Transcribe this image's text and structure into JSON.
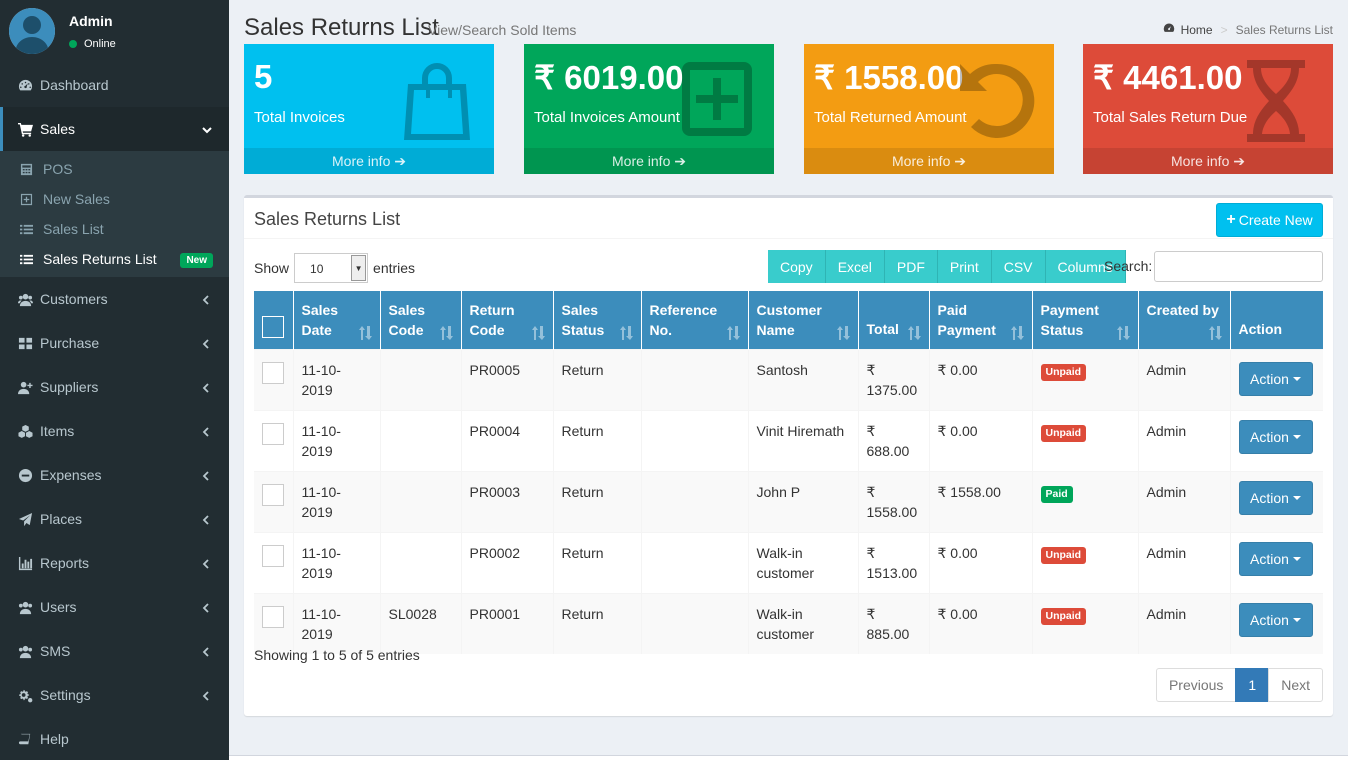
{
  "user": {
    "name": "Admin",
    "status": "Online"
  },
  "menu": [
    {
      "label": "Dashboard",
      "icon": "dashboard-icon"
    },
    {
      "label": "Sales",
      "icon": "cart-icon"
    },
    {
      "label": "Customers",
      "icon": "users-icon"
    },
    {
      "label": "Purchase",
      "icon": "grid-icon"
    },
    {
      "label": "Suppliers",
      "icon": "user-plus-icon"
    },
    {
      "label": "Items",
      "icon": "cubes-icon"
    },
    {
      "label": "Expenses",
      "icon": "minus-circle-icon"
    },
    {
      "label": "Places",
      "icon": "paper-plane-icon"
    },
    {
      "label": "Reports",
      "icon": "bar-chart-icon"
    },
    {
      "label": "Users",
      "icon": "users-icon"
    },
    {
      "label": "SMS",
      "icon": "users-icon"
    },
    {
      "label": "Settings",
      "icon": "cogs-icon"
    },
    {
      "label": "Help",
      "icon": "book-icon"
    }
  ],
  "sales_submenu": [
    {
      "label": "POS",
      "icon": "calculator-icon"
    },
    {
      "label": "New Sales",
      "icon": "plus-square-icon"
    },
    {
      "label": "Sales List",
      "icon": "list-icon"
    },
    {
      "label": "Sales Returns List",
      "icon": "list-icon",
      "badge": "New"
    }
  ],
  "page": {
    "title": "Sales Returns List",
    "subtitle": "View/Search Sold Items"
  },
  "breadcrumb": {
    "home": "Home",
    "current": "Sales Returns List"
  },
  "boxes": [
    {
      "value": "5",
      "label": "Total Invoices",
      "footer": "More info",
      "color": "#00c0ef",
      "icon": "shopping-bag-icon"
    },
    {
      "value": "₹ 6019.00",
      "label": "Total Invoices Amount",
      "footer": "More info",
      "color": "#00a65a",
      "icon": "plus-square-icon"
    },
    {
      "value": "₹ 1558.00",
      "label": "Total Returned Amount",
      "footer": "More info",
      "color": "#f39c12",
      "icon": "undo-icon"
    },
    {
      "value": "₹ 4461.00",
      "label": "Total Sales Return Due",
      "footer": "More info",
      "color": "#dd4b39",
      "icon": "hourglass-icon"
    }
  ],
  "list": {
    "title": "Sales Returns List",
    "create_label": "Create New",
    "show_label": "Show",
    "entries_label": "entries",
    "page_length": "10",
    "search_label": "Search:",
    "buttons": [
      "Copy",
      "Excel",
      "PDF",
      "Print",
      "CSV",
      "Columns"
    ],
    "columns": [
      "Sales Date",
      "Sales Code",
      "Return Code",
      "Sales Status",
      "Reference No.",
      "Customer Name",
      "Total",
      "Paid Payment",
      "Payment Status",
      "Created by",
      "Action"
    ],
    "rows": [
      {
        "date": "11-10-2019",
        "sales_code": "",
        "return_code": "PR0005",
        "status": "Return",
        "ref": "",
        "customer": "Santosh",
        "total": "₹ 1375.00",
        "paid": "₹ 0.00",
        "payment_status": "Unpaid",
        "created_by": "Admin",
        "action": "Action"
      },
      {
        "date": "11-10-2019",
        "sales_code": "",
        "return_code": "PR0004",
        "status": "Return",
        "ref": "",
        "customer": "Vinit Hiremath",
        "total": "₹ 688.00",
        "paid": "₹ 0.00",
        "payment_status": "Unpaid",
        "created_by": "Admin",
        "action": "Action"
      },
      {
        "date": "11-10-2019",
        "sales_code": "",
        "return_code": "PR0003",
        "status": "Return",
        "ref": "",
        "customer": "John P",
        "total": "₹ 1558.00",
        "paid": "₹ 1558.00",
        "payment_status": "Paid",
        "created_by": "Admin",
        "action": "Action"
      },
      {
        "date": "11-10-2019",
        "sales_code": "",
        "return_code": "PR0002",
        "status": "Return",
        "ref": "",
        "customer": "Walk-in customer",
        "total": "₹ 1513.00",
        "paid": "₹ 0.00",
        "payment_status": "Unpaid",
        "created_by": "Admin",
        "action": "Action"
      },
      {
        "date": "11-10-2019",
        "sales_code": "SL0028",
        "return_code": "PR0001",
        "status": "Return",
        "ref": "",
        "customer": "Walk-in customer",
        "total": "₹ 885.00",
        "paid": "₹ 0.00",
        "payment_status": "Unpaid",
        "created_by": "Admin",
        "action": "Action"
      }
    ],
    "info": "Showing 1 to 5 of 5 entries",
    "pagination": {
      "previous": "Previous",
      "current": "1",
      "next": "Next"
    }
  }
}
